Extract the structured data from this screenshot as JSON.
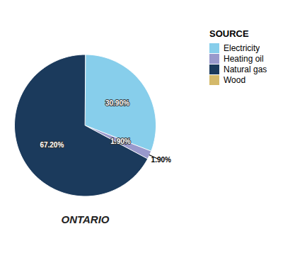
{
  "chart_data": {
    "type": "pie",
    "legend_title": "SOURCE",
    "categories": [
      "Electricity",
      "Heating oil",
      "Natural gas",
      "Wood"
    ],
    "values": [
      30.9,
      1.9,
      67.2,
      0.0
    ],
    "value_labels": [
      "30.90%",
      "1.90%",
      "67.20%",
      null
    ],
    "colors": [
      "#87CEEB",
      "#9999CC",
      "#1B3A5C",
      "#D4B96A"
    ],
    "data_labels": true,
    "legend": "upper right",
    "annotations": [
      {
        "text": "1.90%"
      },
      {
        "text": "ONTARIO"
      }
    ]
  }
}
